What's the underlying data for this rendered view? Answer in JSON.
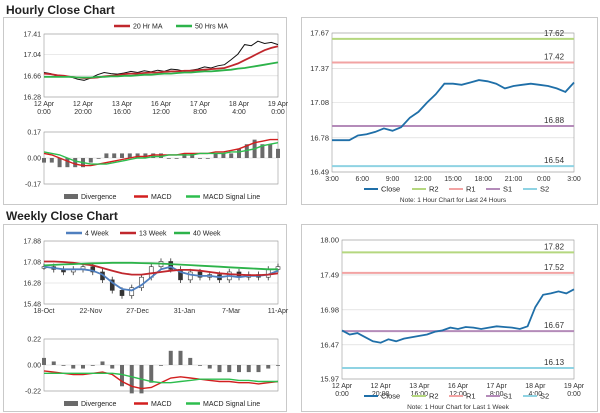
{
  "sections": {
    "hourly_title": "Hourly Close Chart",
    "weekly_title": "Weekly Close Chart"
  },
  "colors": {
    "ma1": "#c0272d",
    "ma2": "#2db34a",
    "price": "#111111",
    "macd": "#d21f1f",
    "signal": "#2dbd4e",
    "divergence": "#6a6a6a",
    "close": "#1f6fa8",
    "r2": "#b5d77f",
    "r1": "#f2a3a3",
    "s1": "#b48bb9",
    "s2": "#8fd3e3",
    "grid": "#d5d5d5",
    "ma4w": "#4f7fbf"
  },
  "chart_data": [
    {
      "id": "hourly-price",
      "type": "line",
      "legend": [
        "20 Hr MA",
        "50 Hrs MA"
      ],
      "legend_position": "top",
      "xlabels": [
        "12 Apr\n0:00",
        "12 Apr\n20:00",
        "13 Apr\n16:00",
        "16 Apr\n12:00",
        "17 Apr\n8:00",
        "18 Apr\n4:00",
        "19 Apr\n0:00"
      ],
      "ylabels": [
        "17.41",
        "17.04",
        "16.66",
        "16.28"
      ],
      "ylim": [
        16.28,
        17.41
      ],
      "grid": true,
      "series": [
        {
          "name": "Price",
          "values": [
            16.72,
            16.7,
            16.65,
            16.66,
            16.64,
            16.6,
            16.58,
            16.62,
            16.68,
            16.72,
            16.7,
            16.69,
            16.71,
            16.74,
            16.72,
            16.75,
            16.73,
            16.76,
            16.74,
            16.78,
            16.77,
            16.74,
            16.76,
            16.78,
            16.82,
            16.8,
            16.84,
            16.86,
            16.95,
            17.05,
            17.22,
            17.2,
            17.28,
            17.24,
            17.26,
            17.22
          ]
        },
        {
          "name": "20 Hr MA",
          "values": [
            16.7,
            16.69,
            16.67,
            16.66,
            16.64,
            16.63,
            16.62,
            16.62,
            16.63,
            16.65,
            16.66,
            16.67,
            16.69,
            16.7,
            16.7,
            16.71,
            16.72,
            16.72,
            16.73,
            16.74,
            16.74,
            16.75,
            16.75,
            16.76,
            16.77,
            16.78,
            16.79,
            16.8,
            16.84,
            16.88,
            16.94,
            17.0,
            17.06,
            17.12,
            17.16,
            17.19
          ]
        },
        {
          "name": "50 Hrs MA",
          "values": [
            16.64,
            16.64,
            16.64,
            16.64,
            16.64,
            16.63,
            16.63,
            16.63,
            16.64,
            16.64,
            16.65,
            16.65,
            16.66,
            16.66,
            16.67,
            16.68,
            16.68,
            16.69,
            16.7,
            16.7,
            16.71,
            16.72,
            16.72,
            16.73,
            16.74,
            16.74,
            16.75,
            16.76,
            16.77,
            16.79,
            16.8,
            16.82,
            16.84,
            16.86,
            16.88,
            16.9
          ]
        }
      ]
    },
    {
      "id": "hourly-macd",
      "type": "line",
      "legend": [
        "Divergence",
        "MACD",
        "MACD Signal Line"
      ],
      "legend_position": "bottom",
      "ylabels": [
        "0.17",
        "0.00",
        "-0.17"
      ],
      "ylim": [
        -0.17,
        0.17
      ],
      "grid": true,
      "series": [
        {
          "name": "MACD",
          "values": [
            0.03,
            0.02,
            0.0,
            -0.02,
            -0.04,
            -0.05,
            -0.05,
            -0.04,
            -0.03,
            -0.02,
            -0.01,
            0.0,
            0.01,
            0.01,
            0.02,
            0.02,
            0.02,
            0.02,
            0.03,
            0.03,
            0.03,
            0.03,
            0.04,
            0.04,
            0.05,
            0.06,
            0.08,
            0.1,
            0.11,
            0.12,
            0.12
          ]
        },
        {
          "name": "MACD Signal Line",
          "values": [
            0.04,
            0.03,
            0.02,
            0.0,
            -0.02,
            -0.03,
            -0.04,
            -0.04,
            -0.04,
            -0.03,
            -0.02,
            -0.01,
            0.0,
            0.0,
            0.01,
            0.01,
            0.02,
            0.02,
            0.02,
            0.02,
            0.03,
            0.03,
            0.03,
            0.03,
            0.04,
            0.04,
            0.05,
            0.06,
            0.08,
            0.09,
            0.1
          ]
        }
      ]
    },
    {
      "id": "hourly-levels",
      "type": "line",
      "xlabels": [
        "3:00",
        "6:00",
        "9:00",
        "12:00",
        "15:00",
        "18:00",
        "21:00",
        "0:00",
        "3:00"
      ],
      "ylabels": [
        "17.67",
        "17.37",
        "17.08",
        "16.78",
        "16.49"
      ],
      "ylim": [
        16.49,
        17.67
      ],
      "grid": true,
      "levels": {
        "R2": 17.62,
        "R1": 17.42,
        "S1": 16.88,
        "S2": 16.54
      },
      "level_labels": [
        "17.62",
        "17.42",
        "16.88",
        "16.54"
      ],
      "legend": [
        "Close",
        "R2",
        "R1",
        "S1",
        "S2"
      ],
      "legend_position": "bottom",
      "series": [
        {
          "name": "Close",
          "values": [
            16.76,
            16.76,
            16.76,
            16.8,
            16.81,
            16.83,
            16.86,
            16.84,
            16.87,
            16.95,
            17.0,
            17.08,
            17.15,
            17.24,
            17.24,
            17.23,
            17.25,
            17.27,
            17.26,
            17.24,
            17.2,
            17.22,
            17.23,
            17.24,
            17.23,
            17.22,
            17.2,
            17.17,
            17.25
          ]
        }
      ],
      "note": "Note: 1 Hour Chart for Last 24 Hours"
    },
    {
      "id": "weekly-price",
      "type": "line",
      "legend": [
        "4 Week",
        "13 Week",
        "40 Week"
      ],
      "legend_position": "top",
      "xlabels": [
        "18-Oct",
        "22-Nov",
        "27-Dec",
        "31-Jan",
        "7-Mar",
        "11-Apr"
      ],
      "ylabels": [
        "17.88",
        "17.08",
        "16.28",
        "15.48"
      ],
      "ylim": [
        15.48,
        17.88
      ],
      "grid": true,
      "series": [
        {
          "name": "Price",
          "values": [
            16.9,
            16.8,
            16.7,
            16.8,
            16.9,
            16.7,
            16.4,
            16.0,
            15.8,
            16.1,
            16.5,
            16.9,
            17.1,
            16.8,
            16.4,
            16.7,
            16.5,
            16.6,
            16.4,
            16.7,
            16.5,
            16.6,
            16.5,
            16.8,
            16.9
          ]
        },
        {
          "name": "4 Week",
          "values": [
            16.9,
            16.85,
            16.8,
            16.8,
            16.8,
            16.75,
            16.6,
            16.3,
            16.05,
            16.0,
            16.2,
            16.5,
            16.8,
            16.9,
            16.7,
            16.6,
            16.55,
            16.55,
            16.5,
            16.55,
            16.5,
            16.55,
            16.55,
            16.6,
            16.75
          ]
        },
        {
          "name": "13 Week",
          "values": [
            17.1,
            17.1,
            17.08,
            17.05,
            17.0,
            16.95,
            16.85,
            16.75,
            16.65,
            16.6,
            16.6,
            16.65,
            16.7,
            16.75,
            16.78,
            16.78,
            16.75,
            16.7,
            16.65,
            16.62,
            16.6,
            16.58,
            16.58,
            16.6,
            16.65
          ]
        },
        {
          "name": "40 Week",
          "values": [
            16.95,
            16.97,
            16.99,
            17.0,
            17.02,
            17.03,
            17.04,
            17.05,
            17.05,
            17.05,
            17.04,
            17.03,
            17.02,
            17.0,
            16.98,
            16.96,
            16.94,
            16.92,
            16.9,
            16.88,
            16.86,
            16.84,
            16.82,
            16.8,
            16.8
          ]
        }
      ]
    },
    {
      "id": "weekly-macd",
      "type": "line",
      "legend": [
        "Divergence",
        "MACD",
        "MACD Signal Line"
      ],
      "legend_position": "bottom",
      "ylabels": [
        "0.22",
        "0.00",
        "-0.22"
      ],
      "ylim": [
        -0.22,
        0.22
      ],
      "grid": true,
      "series": [
        {
          "name": "MACD",
          "values": [
            -0.05,
            -0.06,
            -0.07,
            -0.08,
            -0.08,
            -0.07,
            -0.06,
            -0.08,
            -0.14,
            -0.18,
            -0.2,
            -0.19,
            -0.15,
            -0.11,
            -0.1,
            -0.11,
            -0.12,
            -0.13,
            -0.14,
            -0.14,
            -0.15,
            -0.15,
            -0.16,
            -0.15,
            -0.14
          ]
        },
        {
          "name": "MACD Signal Line",
          "values": [
            -0.07,
            -0.07,
            -0.07,
            -0.07,
            -0.07,
            -0.07,
            -0.07,
            -0.07,
            -0.08,
            -0.1,
            -0.12,
            -0.14,
            -0.15,
            -0.15,
            -0.14,
            -0.13,
            -0.12,
            -0.12,
            -0.12,
            -0.12,
            -0.13,
            -0.13,
            -0.14,
            -0.14,
            -0.14
          ]
        }
      ]
    },
    {
      "id": "weekly-levels",
      "type": "line",
      "xlabels": [
        "12 Apr\n0:00",
        "12 Apr\n20:00",
        "13 Apr\n16:00",
        "16 Apr\n12:00",
        "17 Apr\n8:00",
        "18 Apr\n4:00",
        "19 Apr\n0:00"
      ],
      "ylabels": [
        "18.00",
        "17.49",
        "16.98",
        "16.47",
        "15.97"
      ],
      "ylim": [
        15.97,
        18.0
      ],
      "grid": true,
      "levels": {
        "R2": 17.82,
        "R1": 17.52,
        "S1": 16.67,
        "S2": 16.13
      },
      "level_labels": [
        "17.82",
        "17.52",
        "16.67",
        "16.13"
      ],
      "legend": [
        "Close",
        "R2",
        "R1",
        "S1",
        "S2"
      ],
      "legend_position": "bottom",
      "series": [
        {
          "name": "Close",
          "values": [
            16.68,
            16.62,
            16.64,
            16.58,
            16.52,
            16.5,
            16.55,
            16.52,
            16.56,
            16.58,
            16.6,
            16.62,
            16.66,
            16.68,
            16.72,
            16.7,
            16.73,
            16.72,
            16.7,
            16.72,
            16.74,
            16.73,
            16.72,
            16.7,
            16.74,
            17.02,
            17.2,
            17.22,
            17.25,
            17.22,
            17.28
          ]
        }
      ],
      "note": "Note: 1 Hour Chart for Last 1 Week"
    }
  ]
}
